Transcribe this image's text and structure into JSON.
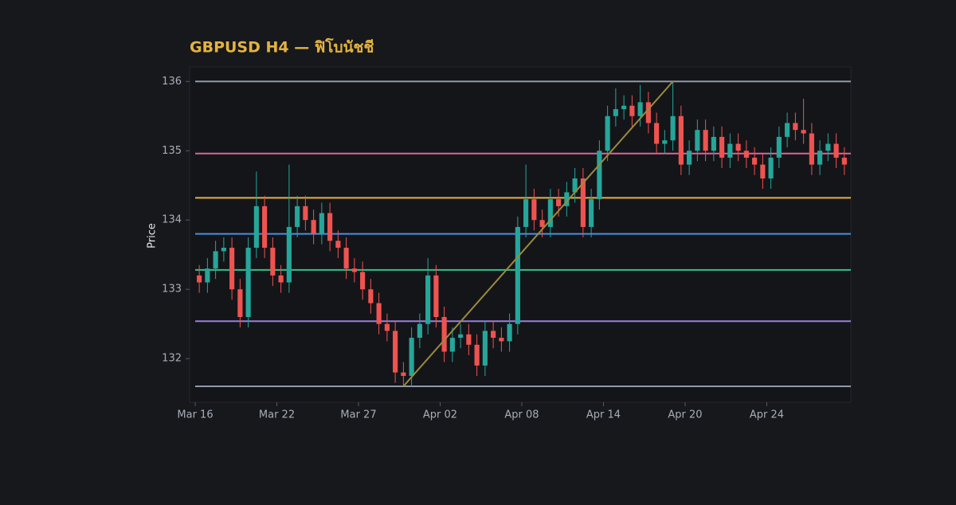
{
  "chart_data": {
    "type": "candlestick",
    "title": "GBPUSD H4 — ฟิโบนัชชี",
    "ylabel": "Price",
    "categories": [
      "Mar 16",
      null,
      null,
      null,
      null,
      null,
      null,
      null,
      null,
      null,
      "Mar 22",
      null,
      null,
      null,
      null,
      null,
      null,
      null,
      null,
      null,
      "Mar 27",
      null,
      null,
      null,
      null,
      null,
      null,
      null,
      null,
      null,
      "Apr 02",
      null,
      null,
      null,
      null,
      null,
      null,
      null,
      null,
      null,
      "Apr 08",
      null,
      null,
      null,
      null,
      null,
      null,
      null,
      null,
      null,
      "Apr 14",
      null,
      null,
      null,
      null,
      null,
      null,
      null,
      null,
      null,
      "Apr 20",
      null,
      null,
      null,
      null,
      null,
      null,
      null,
      null,
      null,
      "Apr 24",
      null,
      null,
      null,
      null,
      null,
      null,
      null,
      null,
      null
    ],
    "open": [
      133.2,
      133.1,
      133.3,
      133.55,
      133.6,
      133.0,
      132.6,
      133.6,
      134.2,
      133.6,
      133.2,
      133.1,
      133.9,
      134.2,
      134.0,
      133.8,
      134.1,
      133.7,
      133.6,
      133.3,
      133.25,
      133.0,
      132.8,
      132.5,
      132.4,
      131.8,
      131.75,
      132.3,
      132.5,
      133.2,
      132.6,
      132.1,
      132.3,
      132.35,
      132.2,
      131.9,
      132.4,
      132.3,
      132.25,
      132.5,
      133.9,
      134.3,
      134.0,
      133.9,
      134.3,
      134.2,
      134.4,
      134.6,
      133.9,
      134.3,
      135.0,
      135.5,
      135.6,
      135.65,
      135.5,
      135.7,
      135.4,
      135.1,
      135.15,
      135.5,
      134.8,
      135.0,
      135.3,
      135.0,
      135.2,
      134.9,
      135.1,
      135.0,
      134.9,
      134.8,
      134.6,
      134.9,
      135.2,
      135.4,
      135.3,
      135.25,
      134.8,
      135.0,
      135.1,
      134.9
    ],
    "high": [
      133.35,
      133.45,
      133.7,
      133.75,
      133.75,
      133.15,
      133.75,
      134.7,
      134.35,
      133.75,
      133.35,
      134.8,
      134.35,
      134.35,
      134.15,
      134.25,
      134.25,
      133.85,
      133.75,
      133.45,
      133.4,
      133.15,
      132.95,
      132.65,
      132.55,
      131.95,
      132.45,
      132.65,
      133.45,
      133.35,
      132.75,
      132.45,
      132.5,
      132.5,
      132.35,
      132.55,
      132.55,
      132.45,
      132.65,
      134.05,
      134.8,
      134.45,
      134.15,
      134.45,
      134.45,
      134.55,
      134.75,
      134.75,
      134.45,
      135.15,
      135.65,
      135.9,
      135.8,
      135.8,
      135.95,
      135.85,
      135.55,
      135.3,
      136.0,
      135.65,
      135.15,
      135.45,
      135.45,
      135.35,
      135.35,
      135.25,
      135.25,
      135.15,
      135.05,
      134.95,
      135.05,
      135.35,
      135.55,
      135.55,
      135.75,
      135.4,
      135.15,
      135.25,
      135.25,
      135.05
    ],
    "low": [
      132.95,
      132.95,
      133.15,
      133.4,
      132.85,
      132.45,
      132.45,
      133.45,
      133.45,
      133.05,
      132.95,
      132.95,
      133.75,
      133.85,
      133.65,
      133.65,
      133.55,
      133.45,
      133.15,
      133.1,
      132.85,
      132.65,
      132.35,
      132.25,
      131.65,
      131.6,
      131.6,
      132.15,
      132.35,
      132.45,
      131.95,
      131.95,
      132.15,
      132.05,
      131.75,
      131.75,
      132.15,
      132.1,
      132.1,
      132.35,
      133.75,
      133.85,
      133.75,
      133.75,
      134.05,
      134.05,
      134.25,
      133.75,
      133.75,
      134.15,
      134.85,
      135.35,
      135.45,
      135.35,
      135.35,
      135.25,
      134.95,
      134.95,
      135.0,
      134.65,
      134.65,
      134.85,
      134.85,
      134.85,
      134.75,
      134.75,
      134.85,
      134.75,
      134.65,
      134.45,
      134.45,
      134.75,
      135.05,
      135.15,
      135.1,
      134.65,
      134.65,
      134.85,
      134.75,
      134.65
    ],
    "close": [
      133.1,
      133.3,
      133.55,
      133.6,
      133.0,
      132.6,
      133.6,
      134.2,
      133.6,
      133.2,
      133.1,
      133.9,
      134.2,
      134.0,
      133.8,
      134.1,
      133.7,
      133.6,
      133.3,
      133.25,
      133.0,
      132.8,
      132.5,
      132.4,
      131.8,
      131.75,
      132.3,
      132.5,
      133.2,
      132.6,
      132.1,
      132.3,
      132.35,
      132.2,
      131.9,
      132.4,
      132.3,
      132.25,
      132.5,
      133.9,
      134.3,
      134.0,
      133.9,
      134.3,
      134.2,
      134.4,
      134.6,
      133.9,
      134.3,
      135.0,
      135.5,
      135.6,
      135.65,
      135.5,
      135.7,
      135.4,
      135.1,
      135.15,
      135.5,
      134.8,
      135.0,
      135.3,
      135.0,
      135.2,
      134.9,
      135.1,
      135.0,
      134.9,
      134.8,
      134.6,
      134.9,
      135.2,
      135.4,
      135.3,
      135.25,
      134.8,
      135.0,
      135.1,
      134.9,
      134.8
    ],
    "up_color": "#26a69a",
    "down_color": "#ef5350",
    "levels": [
      {
        "value": 136.0,
        "color": "#8e9aab"
      },
      {
        "value": 134.96,
        "color": "#e0609a"
      },
      {
        "value": 134.32,
        "color": "#e3b341"
      },
      {
        "value": 133.8,
        "color": "#4a8fe0"
      },
      {
        "value": 133.28,
        "color": "#2fc38c"
      },
      {
        "value": 132.54,
        "color": "#9a7fe0"
      },
      {
        "value": 131.6,
        "color": "#8e9aab"
      }
    ],
    "trendline": {
      "start": [
        25,
        131.6
      ],
      "end": [
        58,
        136.0
      ],
      "color": "#9c8a3c"
    },
    "ylim": [
      131.37,
      136.21
    ],
    "yticks": [
      132,
      133,
      134,
      135,
      136
    ]
  }
}
